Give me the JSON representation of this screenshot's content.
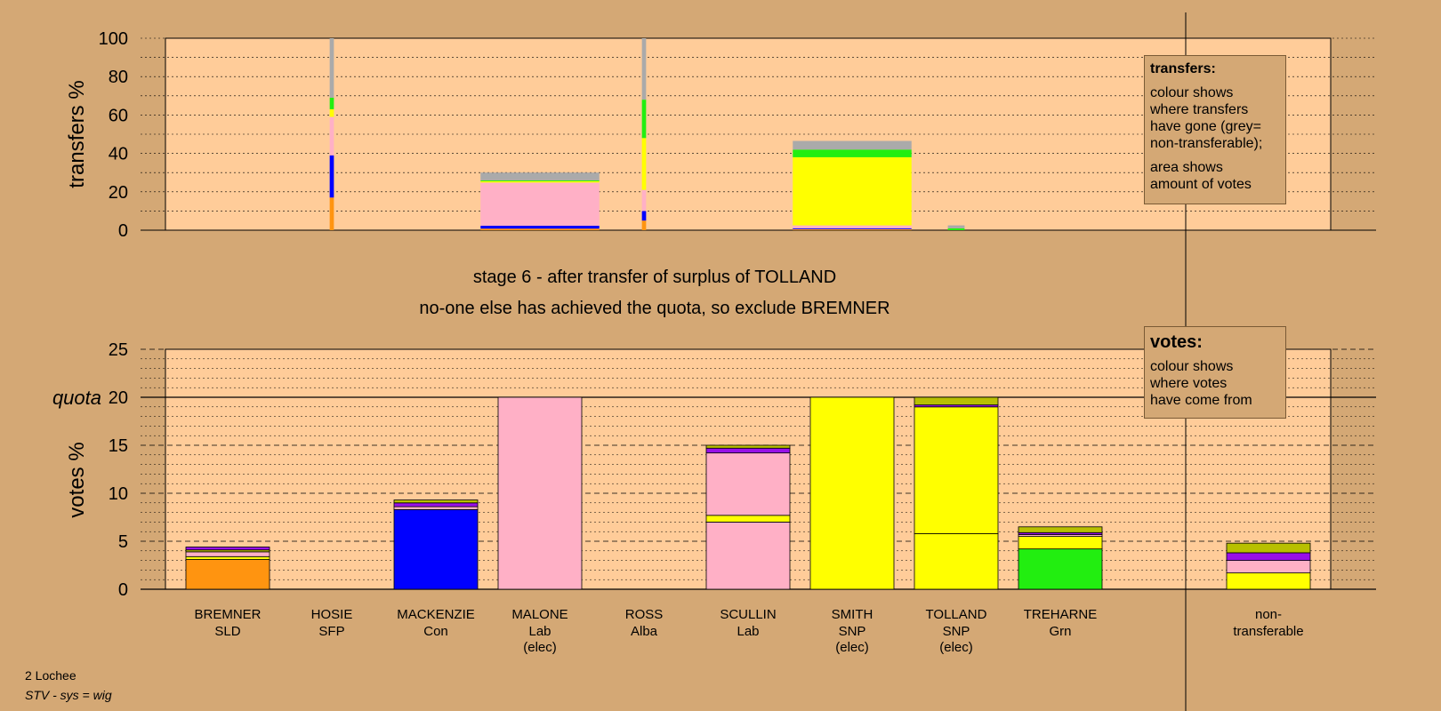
{
  "stage_title": "stage 6 - after transfer of surplus of TOLLAND",
  "stage_subtitle": "no-one else has achieved the quota, so exclude BREMNER",
  "footer": {
    "ward": "2 Lochee",
    "system": "STV - sys = wig"
  },
  "legend_transfers": {
    "heading": "transfers:",
    "line1": "colour shows",
    "line2": "where transfers",
    "line3": "have gone (grey=",
    "line4": "non-transferable);",
    "line5": "area shows",
    "line6": "amount of votes"
  },
  "legend_votes": {
    "heading": "votes:",
    "line1": "colour shows",
    "line2": "where votes",
    "line3": "have come from"
  },
  "colors": {
    "background": "#d4a875",
    "plot_area": "#ffcc99",
    "SLD": "#ff9410",
    "Con": "#0000ff",
    "Lab": "#ffb0c6",
    "SNP": "#ffff00",
    "Grn": "#22ee10",
    "Alba": "#9810e8",
    "SFP": "#b8c000",
    "nontransferable": "#aaaaaa"
  },
  "candidates": [
    {
      "name": "BREMNER",
      "party": "SLD",
      "note": ""
    },
    {
      "name": "HOSIE",
      "party": "SFP",
      "note": ""
    },
    {
      "name": "MACKENZIE",
      "party": "Con",
      "note": ""
    },
    {
      "name": "MALONE",
      "party": "Lab",
      "note": "(elec)"
    },
    {
      "name": "ROSS",
      "party": "Alba",
      "note": ""
    },
    {
      "name": "SCULLIN",
      "party": "Lab",
      "note": ""
    },
    {
      "name": "SMITH",
      "party": "SNP",
      "note": "(elec)"
    },
    {
      "name": "TOLLAND",
      "party": "SNP",
      "note": "(elec)"
    },
    {
      "name": "TREHARNE",
      "party": "Grn",
      "note": ""
    }
  ],
  "nontransferable_label": {
    "line1": "non-",
    "line2": "transferable"
  },
  "chart_data": [
    {
      "type": "bar",
      "stacked": true,
      "ylabel": "transfers %",
      "ylim": [
        0,
        100
      ],
      "yticks": [
        0,
        20,
        40,
        60,
        80,
        100
      ],
      "columns": [
        {
          "candidate": "HOSIE",
          "width_share": 0.05,
          "segments": [
            {
              "to": "SLD",
              "value": 17
            },
            {
              "to": "Con",
              "value": 22
            },
            {
              "to": "Lab",
              "value": 20
            },
            {
              "to": "SNP",
              "value": 4
            },
            {
              "to": "Grn",
              "value": 6
            },
            {
              "to": "nontransferable",
              "value": 31
            }
          ]
        },
        {
          "candidate": "MALONE",
          "width_share": 1.0,
          "segments": [
            {
              "to": "SLD",
              "value": 0.8
            },
            {
              "to": "Con",
              "value": 1.5
            },
            {
              "to": "Lab",
              "value": 22.5
            },
            {
              "to": "SNP",
              "value": 0.7
            },
            {
              "to": "Grn",
              "value": 0.5
            },
            {
              "to": "nontransferable",
              "value": 4
            }
          ]
        },
        {
          "candidate": "ROSS",
          "width_share": 0.05,
          "segments": [
            {
              "to": "SLD",
              "value": 5
            },
            {
              "to": "Con",
              "value": 5
            },
            {
              "to": "Lab",
              "value": 11
            },
            {
              "to": "SNP",
              "value": 27
            },
            {
              "to": "Grn",
              "value": 20
            },
            {
              "to": "nontransferable",
              "value": 32
            }
          ]
        },
        {
          "candidate": "SMITH",
          "width_share": 1.0,
          "segments": [
            {
              "to": "SLD",
              "value": 0.5
            },
            {
              "to": "Con",
              "value": 0.5
            },
            {
              "to": "Lab",
              "value": 1.5
            },
            {
              "to": "SNP",
              "value": 35.5
            },
            {
              "to": "Grn",
              "value": 4
            },
            {
              "to": "nontransferable",
              "value": 4.5
            }
          ]
        },
        {
          "candidate": "TOLLAND",
          "width_share": 0.2,
          "segments": [
            {
              "to": "Grn",
              "value": 1
            },
            {
              "to": "nontransferable",
              "value": 1.5
            }
          ]
        }
      ]
    },
    {
      "type": "bar",
      "stacked": true,
      "ylabel": "votes %",
      "ylim": [
        0,
        25
      ],
      "yticks": [
        0,
        5,
        10,
        15,
        20,
        25
      ],
      "quota": 20,
      "quota_label": "quota",
      "categories": [
        "BREMNER",
        "HOSIE",
        "MACKENZIE",
        "MALONE",
        "ROSS",
        "SCULLIN",
        "SMITH",
        "TOLLAND",
        "TREHARNE",
        "non-transferable"
      ],
      "columns": [
        {
          "candidate": "BREMNER",
          "segments": [
            {
              "from": "SLD",
              "value": 3.1
            },
            {
              "from": "SNP",
              "value": 0.3
            },
            {
              "from": "Lab",
              "value": 0.5
            },
            {
              "from": "SFP",
              "value": 0.2
            },
            {
              "from": "Alba",
              "value": 0.3
            }
          ]
        },
        {
          "candidate": "HOSIE",
          "segments": []
        },
        {
          "candidate": "MACKENZIE",
          "segments": [
            {
              "from": "Con",
              "value": 8.3
            },
            {
              "from": "Lab",
              "value": 0.3
            },
            {
              "from": "Alba",
              "value": 0.4
            },
            {
              "from": "SFP",
              "value": 0.3
            }
          ]
        },
        {
          "candidate": "MALONE",
          "segments": [
            {
              "from": "Lab",
              "value": 20
            }
          ]
        },
        {
          "candidate": "ROSS",
          "segments": []
        },
        {
          "candidate": "SCULLIN",
          "segments": [
            {
              "from": "Lab",
              "value": 7
            },
            {
              "from": "SNP",
              "value": 0.7
            },
            {
              "from": "Lab",
              "value": 6.5
            },
            {
              "from": "Alba",
              "value": 0.5
            },
            {
              "from": "SFP",
              "value": 0.3
            }
          ]
        },
        {
          "candidate": "SMITH",
          "segments": [
            {
              "from": "SNP",
              "value": 20
            }
          ]
        },
        {
          "candidate": "TOLLAND",
          "segments": [
            {
              "from": "SNP",
              "value": 5.8
            },
            {
              "from": "SNP",
              "value": 13.2
            },
            {
              "from": "Alba",
              "value": 0.2
            },
            {
              "from": "SFP",
              "value": 0.8
            }
          ]
        },
        {
          "candidate": "TREHARNE",
          "segments": [
            {
              "from": "Grn",
              "value": 4.2
            },
            {
              "from": "SNP",
              "value": 1.3
            },
            {
              "from": "Lab",
              "value": 0.2
            },
            {
              "from": "Alba",
              "value": 0.2
            },
            {
              "from": "SFP",
              "value": 0.6
            }
          ]
        },
        {
          "candidate": "non-transferable",
          "segments": [
            {
              "from": "SNP",
              "value": 1.7
            },
            {
              "from": "Lab",
              "value": 1.3
            },
            {
              "from": "Alba",
              "value": 0.8
            },
            {
              "from": "SFP",
              "value": 1
            }
          ]
        }
      ]
    }
  ]
}
